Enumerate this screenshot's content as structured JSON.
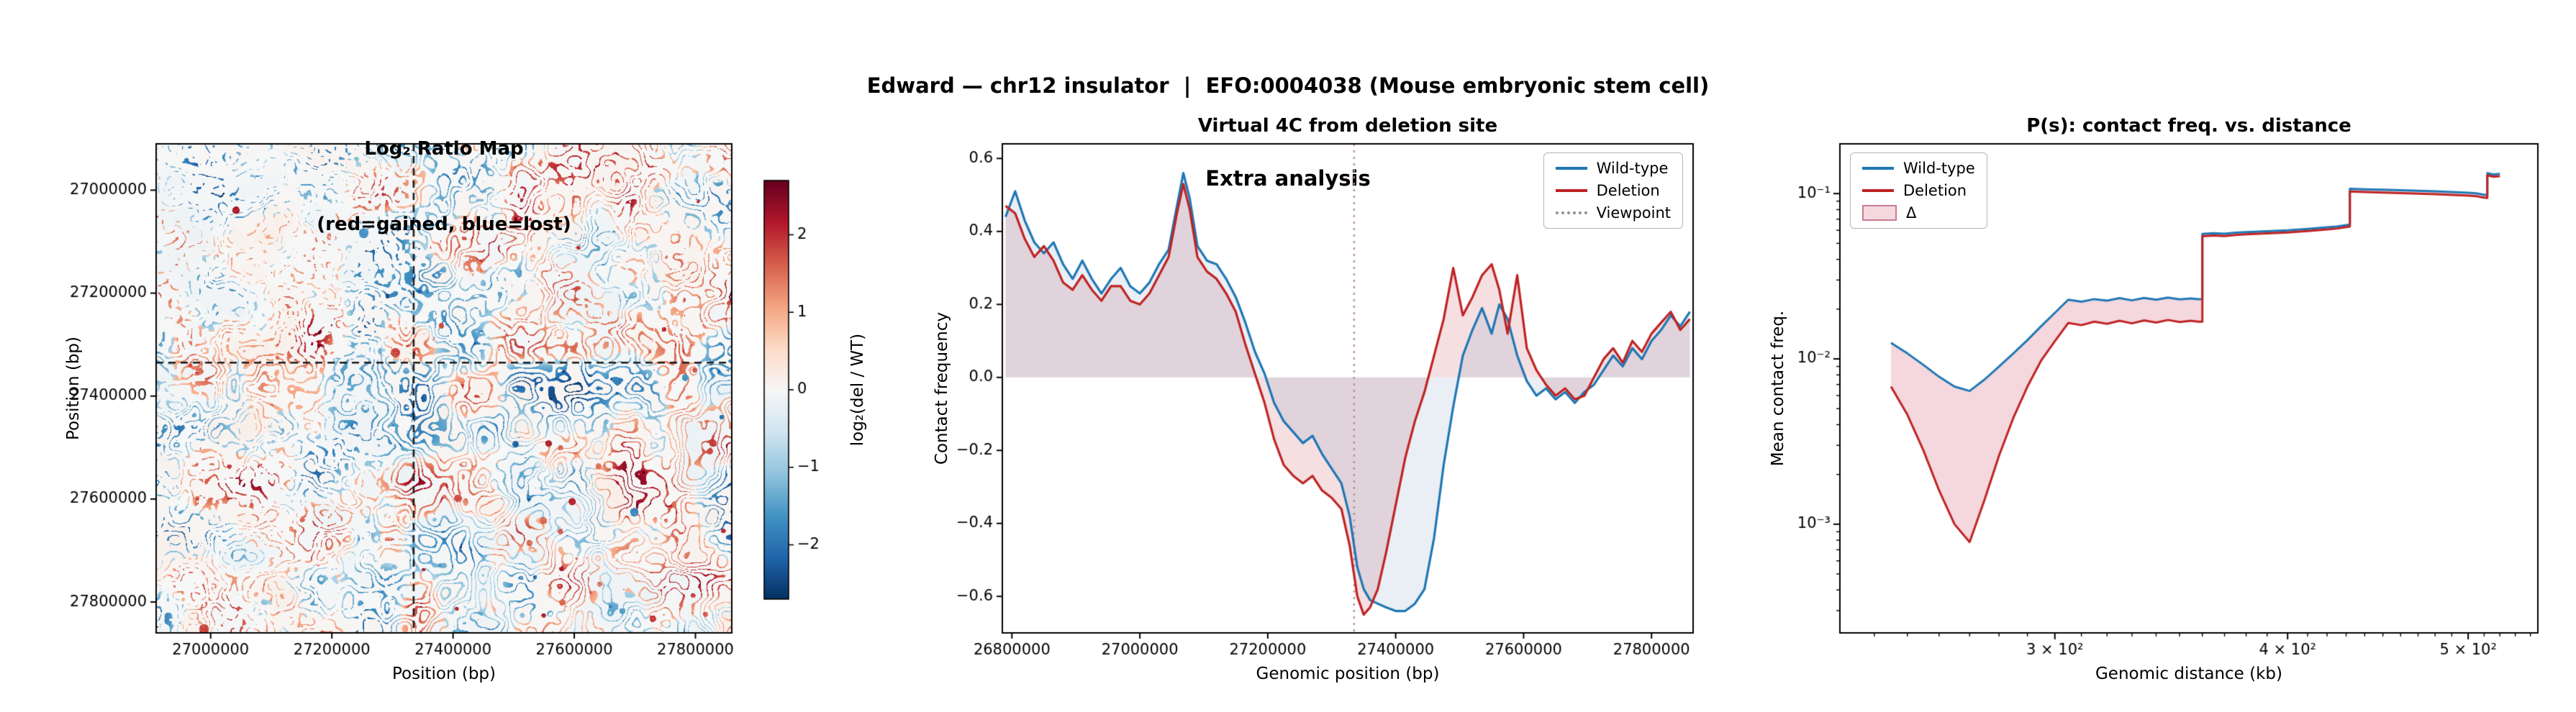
{
  "figure_title": {
    "line1": "Edward — chr12 insulator  |  EFO:0004038 (Mouse embryonic stem cell)",
    "line2": "Extra analysis"
  },
  "colors": {
    "wildtype": "#1f77b4",
    "deletion": "#bf2323",
    "viewpoint_line": "#bb8f9b",
    "delta_fill": "rgba(214,96,125,0.25)",
    "heat_crosshair": "#1a1a1a",
    "fill_deletion_zero": "rgba(190,55,70,0.16)",
    "fill_wildtype_zero": "rgba(50,100,170,0.10)"
  },
  "chart_data": [
    {
      "type": "heatmap",
      "title_line1": "Log₂ Ratio Map",
      "title_line2": "(red=gained, blue=lost)",
      "xlabel": "Position (bp)",
      "ylabel": "Position (bp)",
      "x_range_bp": [
        26910000,
        27860000
      ],
      "y_range_bp": [
        26910000,
        27860000
      ],
      "x_ticks": [
        27000000,
        27200000,
        27400000,
        27600000,
        27800000
      ],
      "y_ticks": [
        27000000,
        27200000,
        27400000,
        27600000,
        27800000
      ],
      "crosshair_bp": 27335000,
      "crosshair_style": "black dashed horizontal and vertical lines at the deletion site",
      "colorbar": {
        "label": "log₂(del / WT)",
        "ticks": [
          2,
          1,
          0,
          -1,
          -2
        ],
        "vmin": -2.7,
        "vmax": 2.7,
        "colormap": "RdBu_r"
      },
      "content_summary": "Speckled diverging log₂(del/WT) contact-ratio map: red = gained contacts, blue = lost contacts; filamentous red/blue structures radiate around the deletion locus with denser clusters in the lower-right quadrant; texture reproduced procedurally from seeded noise.",
      "noise_seed": 11
    },
    {
      "type": "line",
      "title": "Virtual 4C from deletion site",
      "xlabel": "Genomic position (bp)",
      "ylabel": "Contact frequency",
      "xlim": [
        26785000,
        27865000
      ],
      "ylim": [
        -0.7,
        0.64
      ],
      "x_ticks": [
        26800000,
        27000000,
        27200000,
        27400000,
        27600000,
        27800000
      ],
      "y_ticks": [
        -0.6,
        -0.4,
        -0.2,
        0.0,
        0.2,
        0.4,
        0.6
      ],
      "viewpoint_bp": 27335000,
      "x_bp": [
        26790000,
        26805000,
        26820000,
        26835000,
        26850000,
        26865000,
        26880000,
        26895000,
        26910000,
        26925000,
        26940000,
        26955000,
        26970000,
        26985000,
        27000000,
        27015000,
        27030000,
        27045000,
        27058000,
        27068000,
        27078000,
        27090000,
        27105000,
        27120000,
        27135000,
        27150000,
        27165000,
        27180000,
        27195000,
        27210000,
        27225000,
        27240000,
        27255000,
        27270000,
        27285000,
        27300000,
        27315000,
        27328000,
        27340000,
        27350000,
        27360000,
        27372000,
        27385000,
        27400000,
        27415000,
        27430000,
        27445000,
        27460000,
        27475000,
        27490000,
        27505000,
        27520000,
        27535000,
        27550000,
        27562000,
        27575000,
        27590000,
        27605000,
        27620000,
        27635000,
        27650000,
        27665000,
        27680000,
        27695000,
        27710000,
        27725000,
        27740000,
        27755000,
        27770000,
        27785000,
        27800000,
        27815000,
        27830000,
        27845000,
        27860000
      ],
      "series": [
        {
          "name": "Wild-type",
          "values": [
            0.44,
            0.51,
            0.43,
            0.37,
            0.34,
            0.37,
            0.31,
            0.27,
            0.32,
            0.27,
            0.23,
            0.27,
            0.3,
            0.25,
            0.23,
            0.26,
            0.31,
            0.35,
            0.47,
            0.56,
            0.49,
            0.36,
            0.32,
            0.31,
            0.27,
            0.22,
            0.15,
            0.07,
            0.01,
            -0.07,
            -0.12,
            -0.15,
            -0.18,
            -0.16,
            -0.21,
            -0.25,
            -0.29,
            -0.38,
            -0.52,
            -0.58,
            -0.61,
            -0.62,
            -0.63,
            -0.64,
            -0.64,
            -0.62,
            -0.58,
            -0.44,
            -0.24,
            -0.08,
            0.06,
            0.13,
            0.19,
            0.12,
            0.2,
            0.16,
            0.06,
            -0.01,
            -0.05,
            -0.03,
            -0.06,
            -0.04,
            -0.07,
            -0.04,
            -0.02,
            0.02,
            0.06,
            0.03,
            0.08,
            0.05,
            0.1,
            0.13,
            0.17,
            0.14,
            0.18
          ]
        },
        {
          "name": "Deletion",
          "values": [
            0.47,
            0.45,
            0.38,
            0.33,
            0.36,
            0.32,
            0.26,
            0.24,
            0.28,
            0.24,
            0.21,
            0.25,
            0.25,
            0.21,
            0.2,
            0.23,
            0.28,
            0.33,
            0.45,
            0.53,
            0.46,
            0.33,
            0.29,
            0.27,
            0.23,
            0.18,
            0.09,
            0.01,
            -0.07,
            -0.17,
            -0.24,
            -0.27,
            -0.29,
            -0.27,
            -0.31,
            -0.33,
            -0.36,
            -0.46,
            -0.6,
            -0.65,
            -0.63,
            -0.58,
            -0.48,
            -0.35,
            -0.22,
            -0.12,
            -0.04,
            0.06,
            0.16,
            0.3,
            0.17,
            0.22,
            0.28,
            0.31,
            0.24,
            0.12,
            0.28,
            0.08,
            0.02,
            -0.02,
            -0.05,
            -0.03,
            -0.06,
            -0.05,
            0.0,
            0.05,
            0.08,
            0.04,
            0.1,
            0.07,
            0.12,
            0.15,
            0.18,
            0.13,
            0.16
          ]
        }
      ],
      "legend": [
        {
          "label": "Wild-type",
          "type": "line",
          "color": "#1f77b4"
        },
        {
          "label": "Deletion",
          "type": "line",
          "color": "#bf2323"
        },
        {
          "label": "Viewpoint",
          "type": "dotted",
          "color": "#909090"
        }
      ]
    },
    {
      "type": "line",
      "title": "P(s): contact freq. vs. distance",
      "xlabel": "Genomic distance (kb)",
      "ylabel": "Mean contact freq.",
      "xscale": "log",
      "yscale": "log",
      "xlim": [
        230,
        545
      ],
      "ylim": [
        0.00022,
        0.2
      ],
      "x_major_ticks": [
        300,
        400,
        500
      ],
      "x_major_labels": [
        "3 × 10²",
        "4 × 10²",
        "5 × 10²"
      ],
      "y_major_ticks": [
        0.001,
        0.01,
        0.1
      ],
      "y_major_labels": [
        "10⁻³",
        "10⁻²",
        "10⁻¹"
      ],
      "x_kb": [
        245,
        250,
        255,
        260,
        265,
        270,
        275,
        280,
        285,
        290,
        295,
        300,
        305,
        310,
        315,
        320,
        325,
        330,
        335,
        340,
        345,
        350,
        355,
        358,
        360,
        360,
        365,
        370,
        375,
        380,
        390,
        400,
        410,
        420,
        425,
        430,
        432,
        432,
        440,
        450,
        460,
        470,
        480,
        490,
        500,
        505,
        508,
        510,
        512,
        512,
        516,
        520
      ],
      "series": [
        {
          "name": "Wild-type",
          "values": [
            0.0125,
            0.0108,
            0.0092,
            0.0078,
            0.0068,
            0.0064,
            0.0075,
            0.009,
            0.0108,
            0.013,
            0.0158,
            0.019,
            0.0228,
            0.0222,
            0.023,
            0.0225,
            0.0233,
            0.0226,
            0.0234,
            0.0228,
            0.0235,
            0.0229,
            0.0232,
            0.023,
            0.023,
            0.057,
            0.0576,
            0.0572,
            0.058,
            0.0585,
            0.0592,
            0.06,
            0.0612,
            0.0625,
            0.0632,
            0.0645,
            0.065,
            0.107,
            0.1062,
            0.1055,
            0.1048,
            0.104,
            0.1032,
            0.1022,
            0.1012,
            0.1005,
            0.0992,
            0.0985,
            0.098,
            0.133,
            0.1305,
            0.1315
          ]
        },
        {
          "name": "Deletion",
          "values": [
            0.0068,
            0.0046,
            0.0028,
            0.0016,
            0.001,
            0.00078,
            0.0014,
            0.0026,
            0.0044,
            0.0068,
            0.0098,
            0.0128,
            0.0165,
            0.016,
            0.0168,
            0.0163,
            0.017,
            0.0164,
            0.0171,
            0.0166,
            0.0172,
            0.0167,
            0.017,
            0.0168,
            0.0168,
            0.0552,
            0.0558,
            0.0554,
            0.0562,
            0.0567,
            0.0574,
            0.0582,
            0.0594,
            0.0607,
            0.0614,
            0.0627,
            0.0632,
            0.103,
            0.1022,
            0.1015,
            0.1008,
            0.1,
            0.0992,
            0.0982,
            0.0972,
            0.0965,
            0.0952,
            0.0945,
            0.094,
            0.129,
            0.1265,
            0.1275
          ]
        }
      ],
      "legend": [
        {
          "label": "Wild-type",
          "type": "line",
          "color": "#1f77b4"
        },
        {
          "label": "Deletion",
          "type": "line",
          "color": "#bf2323"
        },
        {
          "label": "Δ",
          "type": "patch",
          "fill": "rgba(214,96,125,0.25)",
          "edge": "#c87b95"
        }
      ]
    }
  ]
}
